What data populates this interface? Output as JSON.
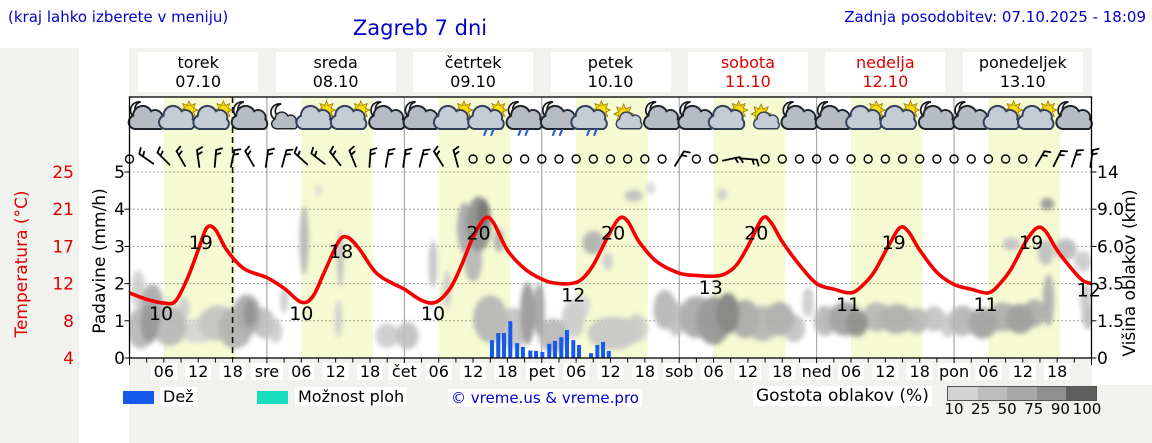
{
  "header": {
    "hint": "(kraj lahko izberete v meniju)",
    "title": "Zagreb 7 dni",
    "updated": "Zadnja posodobitev: 07.10.2025 - 18:09"
  },
  "colors": {
    "blue_text": "#0000cc",
    "red_text": "#dd0000",
    "temp_curve": "#f40000",
    "rain_bar": "#155aec",
    "shower_swatch": "#16debc",
    "daylight_band": "#f6fad2",
    "margin_bg": "#f1f1ee",
    "day_separator": "#999999",
    "grid_dots": "#444444",
    "cloud_gradient": [
      "#d3d3d3",
      "#bdbdbd",
      "#a8a8a8",
      "#8f8f8f",
      "#5e5e5e"
    ]
  },
  "days": [
    {
      "name": "torek",
      "date": "07.10",
      "color": "#000000"
    },
    {
      "name": "sreda",
      "date": "08.10",
      "color": "#000000"
    },
    {
      "name": "četrtek",
      "date": "09.10",
      "color": "#000000"
    },
    {
      "name": "petek",
      "date": "10.10",
      "color": "#000000"
    },
    {
      "name": "sobota",
      "date": "11.10",
      "color": "#dd0000"
    },
    {
      "name": "nedelja",
      "date": "12.10",
      "color": "#dd0000"
    },
    {
      "name": "ponedeljek",
      "date": "13.10",
      "color": "#000000"
    }
  ],
  "axes": {
    "temperature": {
      "label": "Temperatura (°C)",
      "ticks": [
        25,
        21,
        17,
        12,
        8,
        4
      ]
    },
    "precipitation": {
      "label": "Padavine (mm/h)",
      "ticks": [
        5,
        4,
        3,
        2,
        1,
        0
      ]
    },
    "cloud_height": {
      "label": "Višina oblakov (km)",
      "ticks": [
        "14",
        "9.0",
        "6.0",
        "3.5",
        "1.5",
        "0"
      ],
      "anchors_km": [
        0,
        1.5,
        3.5,
        6,
        9,
        14
      ]
    },
    "time": {
      "hour_labels": [
        "06",
        "12",
        "18"
      ],
      "day_abbrevs": [
        "sre",
        "čet",
        "pet",
        "sob",
        "ned",
        "pon"
      ]
    }
  },
  "legend": {
    "rain_label": "Dež",
    "showers_label": "Možnost ploh",
    "credit": "© vreme.us & vreme.pro",
    "cloud_label": "Gostota oblakov (%)",
    "density_ticks": [
      10,
      25,
      50,
      75,
      90,
      100
    ]
  },
  "chart_data": {
    "type": "meteogram-composite",
    "x_hours_range": [
      0,
      168
    ],
    "current_time_hour": 18,
    "daylight_hours": [
      6,
      18.5
    ],
    "temp_axis_anchors": {
      "celsius": [
        4,
        8,
        12,
        17,
        21,
        25
      ],
      "grid_units": [
        0,
        1,
        2,
        3,
        4,
        5
      ]
    },
    "temperature_curve": [
      [
        0,
        11
      ],
      [
        3,
        10.3
      ],
      [
        6,
        9.9
      ],
      [
        8,
        10.1
      ],
      [
        10,
        12.5
      ],
      [
        12,
        16.5
      ],
      [
        13.5,
        19
      ],
      [
        15,
        18.8
      ],
      [
        17,
        16.5
      ],
      [
        20,
        14
      ],
      [
        24,
        12.8
      ],
      [
        27,
        11.5
      ],
      [
        30,
        10
      ],
      [
        32,
        10.6
      ],
      [
        34,
        13.5
      ],
      [
        36.5,
        17.5
      ],
      [
        38,
        18
      ],
      [
        40,
        16.8
      ],
      [
        43,
        13.5
      ],
      [
        46,
        12
      ],
      [
        48,
        11.4
      ],
      [
        51,
        10.2
      ],
      [
        53.5,
        10
      ],
      [
        56,
        11.5
      ],
      [
        58,
        14.5
      ],
      [
        60,
        18
      ],
      [
        62,
        20
      ],
      [
        63.5,
        19.6
      ],
      [
        66,
        16.5
      ],
      [
        69,
        14
      ],
      [
        72,
        12.6
      ],
      [
        74,
        12.1
      ],
      [
        77,
        12
      ],
      [
        79,
        12.6
      ],
      [
        81,
        14.5
      ],
      [
        83.5,
        18
      ],
      [
        85.5,
        20
      ],
      [
        87,
        19.7
      ],
      [
        89,
        17.5
      ],
      [
        92,
        15
      ],
      [
        96,
        13.4
      ],
      [
        99,
        13.1
      ],
      [
        102,
        13
      ],
      [
        104,
        13.3
      ],
      [
        106,
        14.5
      ],
      [
        108,
        17
      ],
      [
        110.5,
        20
      ],
      [
        112,
        19.6
      ],
      [
        114,
        17.5
      ],
      [
        117,
        14.5
      ],
      [
        120,
        12
      ],
      [
        123,
        11.4
      ],
      [
        126,
        11
      ],
      [
        128,
        11.8
      ],
      [
        130,
        13.5
      ],
      [
        132.5,
        17
      ],
      [
        134.5,
        19
      ],
      [
        136,
        18.6
      ],
      [
        138,
        16.5
      ],
      [
        141,
        13.5
      ],
      [
        144,
        11.9
      ],
      [
        147,
        11.4
      ],
      [
        150,
        11
      ],
      [
        152,
        12
      ],
      [
        154,
        14
      ],
      [
        156.5,
        17.5
      ],
      [
        158.5,
        19
      ],
      [
        160,
        18.6
      ],
      [
        162,
        16.5
      ],
      [
        164.5,
        14
      ],
      [
        166.5,
        12.4
      ],
      [
        168,
        12
      ]
    ],
    "temp_max_labels": [
      {
        "hour": 13.5,
        "value": 19
      },
      {
        "hour": 38,
        "value": 18
      },
      {
        "hour": 62,
        "value": 20
      },
      {
        "hour": 85.5,
        "value": 20
      },
      {
        "hour": 110.5,
        "value": 20
      },
      {
        "hour": 134.5,
        "value": 19
      },
      {
        "hour": 158.5,
        "value": 19
      }
    ],
    "temp_min_labels": [
      {
        "hour": 5.5,
        "value": 10
      },
      {
        "hour": 30,
        "value": 10
      },
      {
        "hour": 53,
        "value": 10
      },
      {
        "hour": 77.5,
        "value": 12
      },
      {
        "hour": 101.5,
        "value": 13
      },
      {
        "hour": 125.5,
        "value": 11
      },
      {
        "hour": 149.5,
        "value": 11
      }
    ],
    "temp_end_label": {
      "hour": 167,
      "value": 12
    },
    "precipitation_bars_mmh": [
      [
        63.3,
        0.48
      ],
      [
        64.4,
        0.67
      ],
      [
        65.4,
        0.67
      ],
      [
        66.5,
        0.99
      ],
      [
        67.7,
        0.4
      ],
      [
        68.7,
        0.3
      ],
      [
        70,
        0.2
      ],
      [
        71,
        0.19
      ],
      [
        72.1,
        0.16
      ],
      [
        73.3,
        0.38
      ],
      [
        74.3,
        0.46
      ],
      [
        75.4,
        0.56
      ],
      [
        76.4,
        0.75
      ],
      [
        77.5,
        0.48
      ],
      [
        78.5,
        0.35
      ],
      [
        80.6,
        0.13
      ],
      [
        81.7,
        0.35
      ],
      [
        82.7,
        0.43
      ],
      [
        83.7,
        0.19
      ]
    ],
    "weather_icons": [
      "night-cloudy",
      "day-partly",
      "day-partly",
      "night-cloudy",
      "night-fair",
      "day-partly",
      "day-partly",
      "night-cloudy",
      "night-cloudy",
      "day-partly",
      "day-rain",
      "night-rain",
      "night-rain",
      "day-rain",
      "day-fair",
      "night-cloudy",
      "night-cloudy",
      "day-partly",
      "day-fair",
      "night-cloudy",
      "night-cloudy",
      "day-partly",
      "day-partly",
      "night-cloudy",
      "night-cloudy",
      "day-partly",
      "day-partly",
      "night-cloudy"
    ],
    "wind_symbols": [
      [
        0,
        0
      ],
      [
        1,
        -55
      ],
      [
        1,
        -45
      ],
      [
        1,
        -30
      ],
      [
        1,
        -8
      ],
      [
        1,
        5
      ],
      [
        1,
        12
      ],
      [
        1,
        -30
      ],
      [
        1,
        8
      ],
      [
        1,
        15
      ],
      [
        1,
        -48
      ],
      [
        1,
        -52
      ],
      [
        1,
        -38
      ],
      [
        1,
        -22
      ],
      [
        1,
        4
      ],
      [
        1,
        10
      ],
      [
        1,
        8
      ],
      [
        1,
        14
      ],
      [
        1,
        -32
      ],
      [
        1,
        -15
      ],
      [
        0,
        0
      ],
      [
        0,
        0
      ],
      [
        0,
        0
      ],
      [
        0,
        0
      ],
      [
        0,
        0
      ],
      [
        0,
        0
      ],
      [
        0,
        0
      ],
      [
        0,
        0
      ],
      [
        0,
        0
      ],
      [
        0,
        0
      ],
      [
        0,
        0
      ],
      [
        0,
        0
      ],
      [
        1,
        32
      ],
      [
        0,
        0
      ],
      [
        0,
        0
      ],
      [
        1,
        78
      ],
      [
        1,
        95
      ],
      [
        0,
        0
      ],
      [
        0,
        0
      ],
      [
        0,
        0
      ],
      [
        0,
        0
      ],
      [
        0,
        0
      ],
      [
        0,
        0
      ],
      [
        0,
        0
      ],
      [
        0,
        0
      ],
      [
        0,
        0
      ],
      [
        0,
        0
      ],
      [
        0,
        0
      ],
      [
        0,
        0
      ],
      [
        0,
        0
      ],
      [
        0,
        0
      ],
      [
        0,
        0
      ],
      [
        0,
        0
      ],
      [
        1,
        30
      ],
      [
        1,
        26
      ],
      [
        1,
        18
      ],
      [
        1,
        8
      ]
    ],
    "clouds_h_km_rh_rkm_density": [
      [
        2,
        1.2,
        2.5,
        0.9,
        55
      ],
      [
        1.5,
        3.2,
        1.2,
        1.1,
        45
      ],
      [
        4,
        2.2,
        2,
        1.2,
        62
      ],
      [
        3.5,
        1.4,
        1.6,
        0.9,
        72
      ],
      [
        7,
        1.3,
        3,
        0.9,
        55
      ],
      [
        9.5,
        2.2,
        1,
        0.6,
        45
      ],
      [
        12,
        1.1,
        3.5,
        0.5,
        42
      ],
      [
        15.5,
        1.4,
        3.5,
        0.8,
        50
      ],
      [
        18.5,
        1.2,
        3,
        0.9,
        58
      ],
      [
        20.5,
        1.8,
        2.5,
        1,
        62
      ],
      [
        21,
        1.9,
        1.2,
        0.7,
        74
      ],
      [
        23.5,
        1.4,
        1.8,
        0.7,
        52
      ],
      [
        25.5,
        1.1,
        1.2,
        0.5,
        46
      ],
      [
        27,
        2.6,
        0.7,
        0.7,
        46
      ],
      [
        30.5,
        6.5,
        0.8,
        2.6,
        56
      ],
      [
        33,
        11.5,
        0.5,
        0.6,
        42
      ],
      [
        36.8,
        5.2,
        0.6,
        2,
        52
      ],
      [
        36.5,
        1.6,
        0.6,
        0.9,
        46
      ],
      [
        45,
        0.9,
        2,
        0.5,
        46
      ],
      [
        48.5,
        0.9,
        2,
        0.55,
        52
      ],
      [
        53,
        4.8,
        0.8,
        1.6,
        50
      ],
      [
        55.5,
        3.2,
        0.7,
        1.1,
        46
      ],
      [
        58.5,
        7.5,
        1.3,
        2.1,
        62
      ],
      [
        61,
        7.8,
        2.2,
        2.4,
        74
      ],
      [
        61.8,
        8.6,
        1.1,
        1.4,
        88
      ],
      [
        60,
        5,
        1.6,
        1.4,
        56
      ],
      [
        64.5,
        6.5,
        0.9,
        0.9,
        60
      ],
      [
        63,
        1.6,
        3,
        1.1,
        56
      ],
      [
        67,
        1.2,
        2.6,
        0.9,
        50
      ],
      [
        69.5,
        1.9,
        1.3,
        1.5,
        70
      ],
      [
        71.5,
        2.1,
        1,
        1.3,
        64
      ],
      [
        74,
        0.9,
        2.6,
        0.7,
        55
      ],
      [
        77.5,
        1.6,
        2,
        0.9,
        46
      ],
      [
        79,
        2.3,
        1.5,
        0.6,
        42
      ],
      [
        81,
        6.3,
        1.9,
        0.9,
        58
      ],
      [
        83.5,
        5,
        0.9,
        0.6,
        46
      ],
      [
        84.5,
        1,
        4.5,
        0.7,
        48
      ],
      [
        88.5,
        1.2,
        2,
        0.6,
        46
      ],
      [
        88,
        10.8,
        1.6,
        0.7,
        52
      ],
      [
        91,
        11.8,
        0.8,
        0.45,
        42
      ],
      [
        103.5,
        11,
        0.9,
        0.5,
        45
      ],
      [
        93.5,
        2.1,
        2,
        1,
        56
      ],
      [
        95.5,
        1.6,
        1.6,
        0.8,
        52
      ],
      [
        99,
        1.7,
        3,
        1,
        62
      ],
      [
        102,
        1.5,
        3,
        1.1,
        72
      ],
      [
        104.5,
        1.9,
        2,
        1,
        80
      ],
      [
        107.5,
        1.6,
        2.6,
        0.9,
        62
      ],
      [
        110.5,
        1.4,
        3,
        0.8,
        56
      ],
      [
        113.5,
        1.6,
        2.6,
        0.8,
        60
      ],
      [
        116,
        1.2,
        2,
        0.6,
        50
      ],
      [
        118.5,
        2.5,
        1,
        0.8,
        46
      ],
      [
        121.5,
        1.5,
        2,
        0.7,
        55
      ],
      [
        125,
        1.6,
        3,
        0.8,
        66
      ],
      [
        127,
        1.4,
        2,
        0.6,
        75
      ],
      [
        130.5,
        1.7,
        2.6,
        0.7,
        56
      ],
      [
        134,
        1.6,
        3,
        0.7,
        60
      ],
      [
        137.5,
        1.5,
        2,
        0.6,
        55
      ],
      [
        140.5,
        1.6,
        2,
        0.6,
        50
      ],
      [
        143,
        1.3,
        1.5,
        0.5,
        46
      ],
      [
        145.5,
        1.5,
        2.5,
        0.7,
        56
      ],
      [
        149,
        1.4,
        2.5,
        0.7,
        66
      ],
      [
        152.5,
        1.7,
        3,
        0.7,
        60
      ],
      [
        155.5,
        1.6,
        2.5,
        0.7,
        68
      ],
      [
        158,
        1.9,
        2,
        0.7,
        60
      ],
      [
        160.5,
        2.6,
        1,
        1.4,
        60
      ],
      [
        154,
        6.2,
        1.5,
        0.5,
        50
      ],
      [
        160,
        5.6,
        1.4,
        0.9,
        52
      ],
      [
        160.3,
        9.7,
        1.2,
        0.8,
        70
      ],
      [
        163.5,
        5.8,
        1.9,
        0.8,
        54
      ],
      [
        166.5,
        5,
        1.5,
        0.7,
        46
      ],
      [
        167,
        2.6,
        1,
        0.9,
        48
      ],
      [
        167.5,
        1.7,
        1.2,
        0.6,
        52
      ]
    ]
  }
}
